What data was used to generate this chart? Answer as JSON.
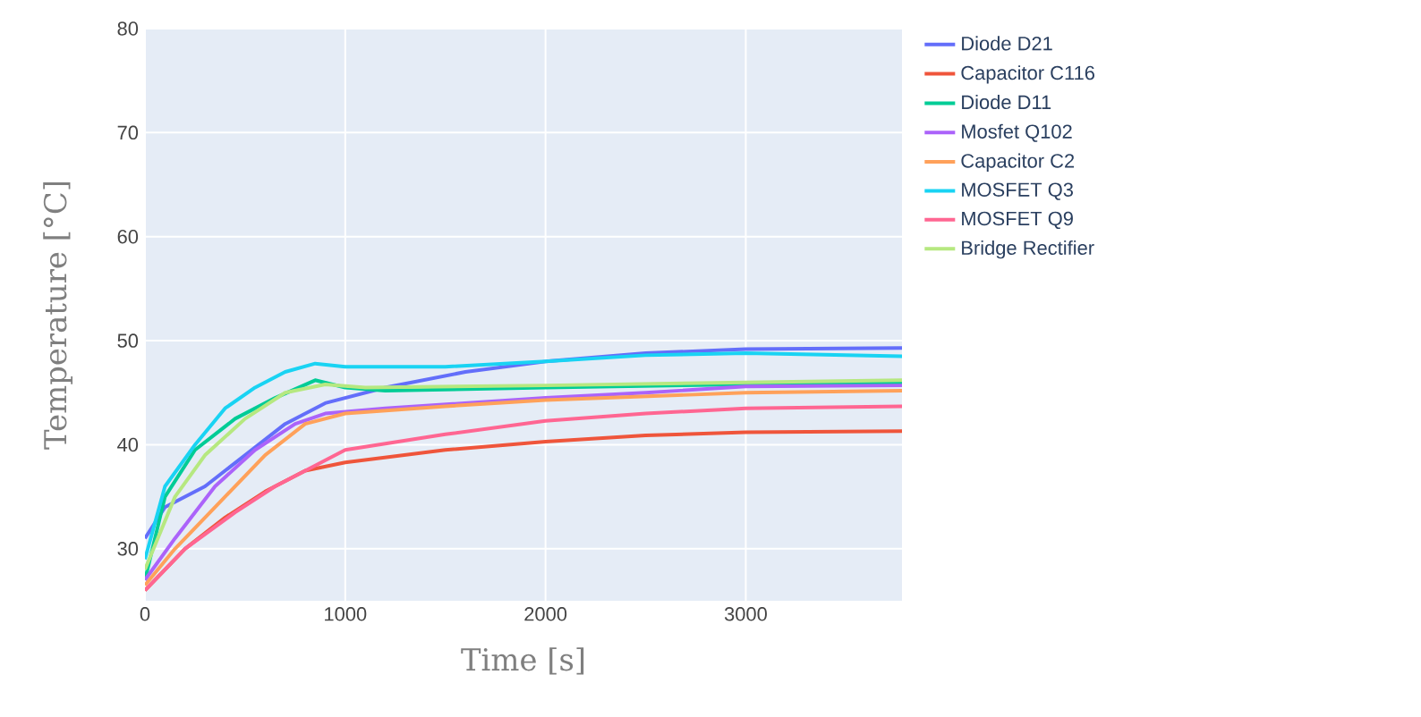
{
  "chart_data": {
    "type": "line",
    "xlabel": "Time [s]",
    "ylabel": "Temperature [°C]",
    "xlim": [
      0,
      3780
    ],
    "ylim": [
      25,
      80
    ],
    "xticks": [
      0,
      1000,
      2000,
      3000
    ],
    "yticks": [
      30,
      40,
      50,
      60,
      70,
      80
    ],
    "grid": true,
    "legend": "right",
    "marker": "none",
    "line_style": "solid",
    "series": [
      {
        "name": "Diode D21",
        "color": "#636efa",
        "x": [
          0,
          100,
          300,
          500,
          700,
          900,
          1200,
          1600,
          2000,
          2500,
          3000,
          3780
        ],
        "values": [
          31,
          34,
          36,
          39,
          42,
          44,
          45.5,
          47,
          48,
          48.8,
          49.2,
          49.3
        ]
      },
      {
        "name": "Capacitor C116",
        "color": "#ef553b",
        "x": [
          0,
          200,
          400,
          600,
          800,
          1000,
          1500,
          2000,
          2500,
          3000,
          3780
        ],
        "values": [
          26,
          30,
          33,
          35.5,
          37.5,
          38.3,
          39.5,
          40.3,
          40.9,
          41.2,
          41.3
        ]
      },
      {
        "name": "Diode D11",
        "color": "#00cc96",
        "x": [
          0,
          100,
          250,
          450,
          650,
          850,
          1000,
          1200,
          2000,
          3000,
          3780
        ],
        "values": [
          27,
          35,
          39.5,
          42.5,
          44.5,
          46.2,
          45.5,
          45.2,
          45.5,
          45.8,
          45.9
        ]
      },
      {
        "name": "Mosfet Q102",
        "color": "#ab63fa",
        "x": [
          0,
          150,
          350,
          550,
          750,
          900,
          1200,
          2000,
          2500,
          3000,
          3780
        ],
        "values": [
          27,
          31,
          36,
          39.5,
          42,
          43,
          43.5,
          44.5,
          45,
          45.6,
          45.7
        ]
      },
      {
        "name": "Capacitor C2",
        "color": "#ffa15a",
        "x": [
          0,
          150,
          400,
          600,
          800,
          1000,
          1500,
          2000,
          3000,
          3780
        ],
        "values": [
          26.5,
          30,
          35,
          39,
          42,
          43,
          43.7,
          44.3,
          45,
          45.2
        ]
      },
      {
        "name": "MOSFET Q3",
        "color": "#19d3f3",
        "x": [
          0,
          100,
          250,
          400,
          550,
          700,
          850,
          1000,
          1500,
          2000,
          2500,
          3000,
          3780
        ],
        "values": [
          29,
          36,
          40,
          43.5,
          45.5,
          47,
          47.8,
          47.5,
          47.5,
          48,
          48.6,
          48.8,
          48.5
        ]
      },
      {
        "name": "MOSFET Q9",
        "color": "#ff6692",
        "x": [
          0,
          200,
          450,
          650,
          850,
          1000,
          1500,
          2000,
          2500,
          3000,
          3780
        ],
        "values": [
          26,
          30,
          33.5,
          36,
          38,
          39.5,
          41,
          42.3,
          43,
          43.5,
          43.7
        ]
      },
      {
        "name": "Bridge Rectifier",
        "color": "#b6e880",
        "x": [
          0,
          150,
          300,
          500,
          700,
          900,
          1100,
          2000,
          3000,
          3780
        ],
        "values": [
          28,
          35,
          39,
          42.5,
          45,
          45.8,
          45.5,
          45.7,
          46,
          46.2
        ]
      }
    ]
  }
}
